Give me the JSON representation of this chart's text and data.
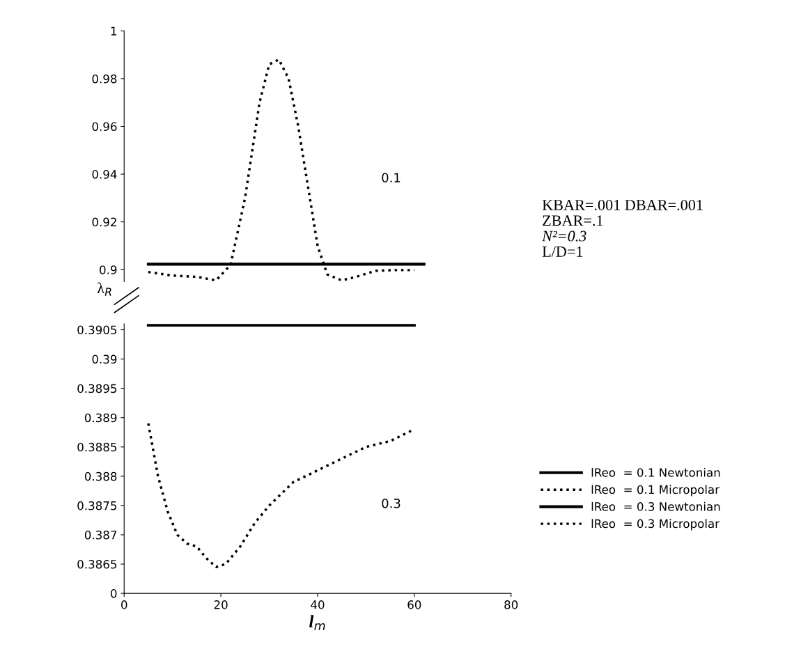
{
  "chart_data": [
    {
      "type": "line",
      "xlim": [
        0,
        80
      ],
      "ylim": [
        0.895,
        1.0
      ],
      "yticks": [
        0.9,
        0.92,
        0.94,
        0.96,
        0.98,
        1
      ],
      "tick_labels": "y",
      "ylabel": "λ$_{R}$",
      "grid": false,
      "legend": "right",
      "marker": "none",
      "annotations": [
        "0.1",
        "KBAR=.001 DBAR=.001",
        "ZBAR=.1",
        "N²=0.3",
        "L/D=1"
      ],
      "series": [
        {
          "name": "lReo  = 0.1 Newtonian",
          "color": "#000000",
          "line_style": "solid",
          "x": [
            5,
            62
          ],
          "values": [
            0.9023,
            0.9023
          ]
        },
        {
          "name": "lReo  = 0.1 Micropolar",
          "color": "#000000",
          "line_style": "dotted",
          "x": [
            5,
            10,
            15,
            19,
            22,
            25,
            28,
            30,
            32,
            34,
            36,
            38,
            40,
            42,
            45,
            48,
            52,
            56,
            60
          ],
          "values": [
            0.899,
            0.8975,
            0.897,
            0.8955,
            0.902,
            0.93,
            0.97,
            0.986,
            0.988,
            0.98,
            0.96,
            0.935,
            0.91,
            0.898,
            0.8955,
            0.897,
            0.8995,
            0.8998,
            0.8998
          ]
        }
      ]
    },
    {
      "type": "line",
      "xlim": [
        0,
        80
      ],
      "xticks": [
        0,
        20,
        40,
        60,
        80
      ],
      "ylim": [
        0.386,
        0.3906
      ],
      "xlabel": "l$_{m}$",
      "grid": false,
      "legend": "right",
      "marker": "none",
      "yticks": [
        {
          "value": 0.386,
          "label": "0"
        },
        0.3865,
        0.387,
        0.3875,
        0.388,
        0.3885,
        0.389,
        0.3895,
        0.39,
        0.3905
      ],
      "annotations": [
        "0.3"
      ],
      "series": [
        {
          "name": "lReo  = 0.3 Newtonian",
          "color": "#000000",
          "line_style": "solid",
          "x": [
            5,
            60
          ],
          "values": [
            0.39058,
            0.39058
          ]
        },
        {
          "name": "lReo  = 0.3 Micropolar",
          "color": "#000000",
          "line_style": "dotted",
          "x": [
            5,
            7,
            9,
            11,
            13,
            15,
            17,
            19,
            21,
            24,
            27,
            30,
            35,
            40,
            45,
            50,
            55,
            60
          ],
          "values": [
            0.3889,
            0.388,
            0.3874,
            0.387,
            0.38685,
            0.3868,
            0.3866,
            0.38645,
            0.3865,
            0.3868,
            0.3872,
            0.3875,
            0.3879,
            0.3881,
            0.3883,
            0.3885,
            0.3886,
            0.3888
          ]
        }
      ]
    }
  ]
}
